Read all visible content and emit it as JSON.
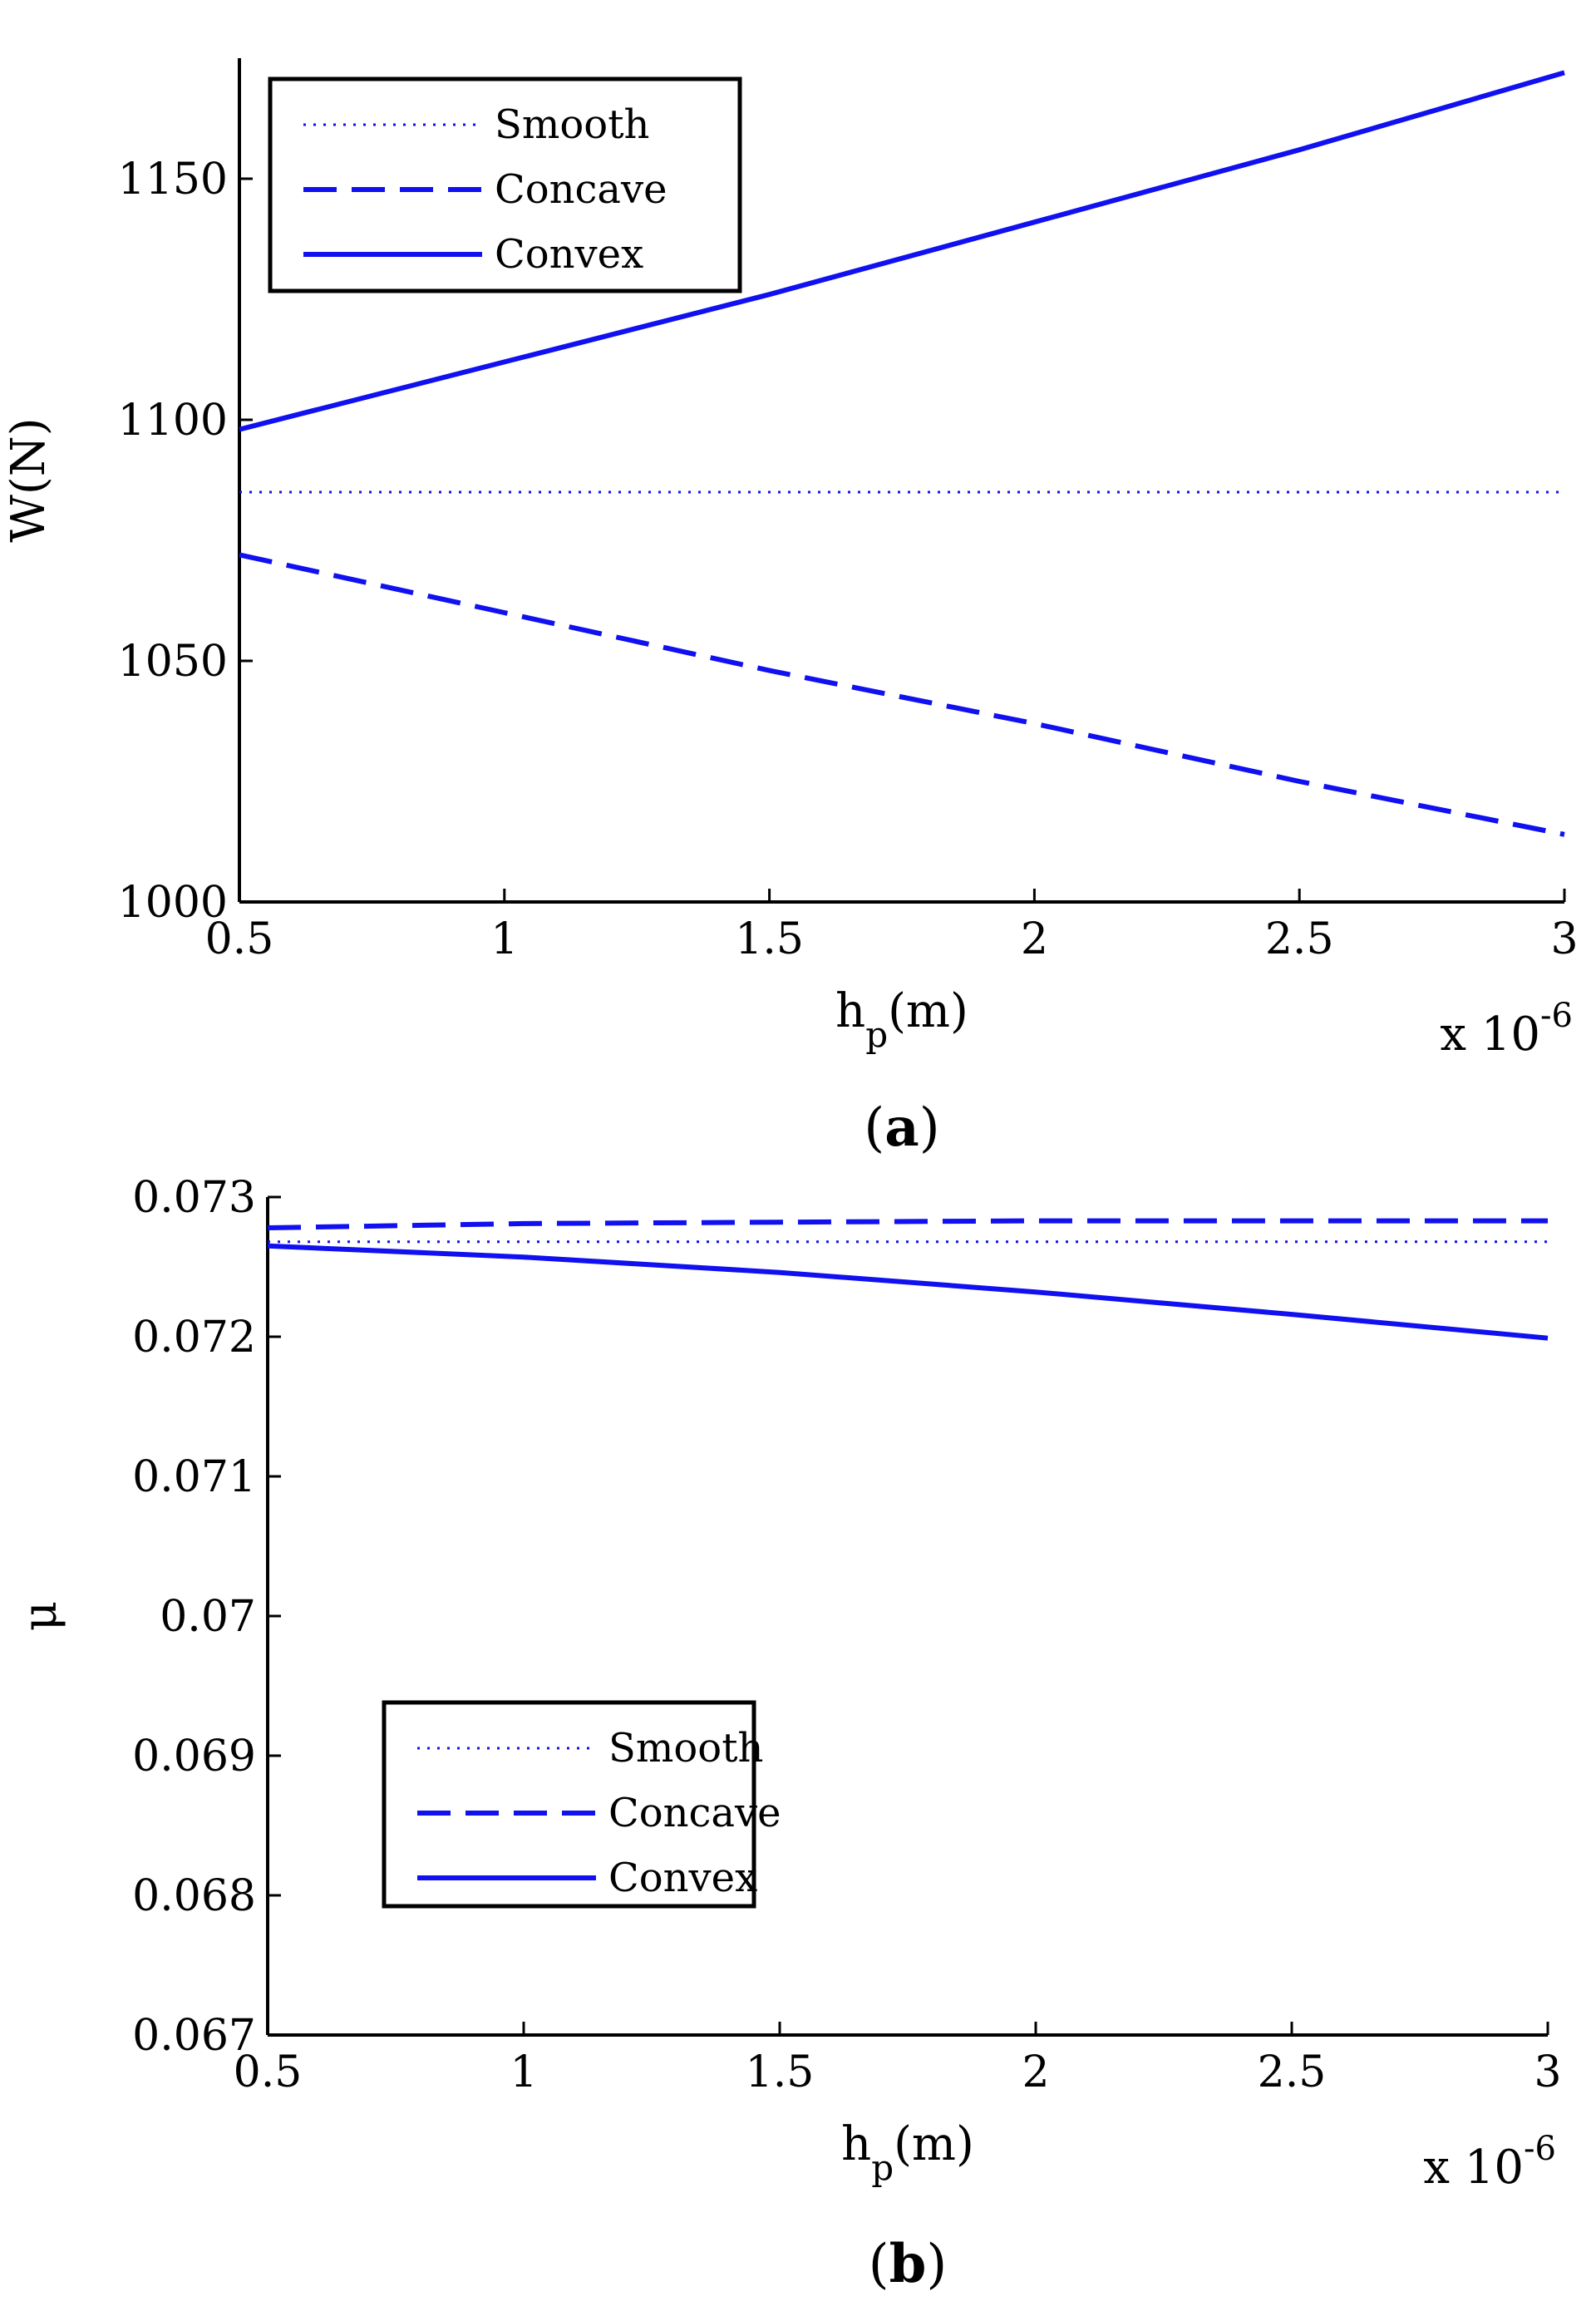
{
  "chart_data": [
    {
      "type": "line",
      "panel_label": "a",
      "xlabel": "h",
      "xlabel_sub": "p",
      "xlabel_unit": "(m)",
      "ylabel": "W(N)",
      "x_multiplier_text": "x 10",
      "x_multiplier_exp": "-6",
      "xlim": [
        0.5,
        3
      ],
      "ylim": [
        1000,
        1175
      ],
      "xticks": [
        0.5,
        1,
        1.5,
        2,
        2.5,
        3
      ],
      "xtick_labels": [
        "0.5",
        "1",
        "1.5",
        "2",
        "2.5",
        "3"
      ],
      "yticks": [
        1000,
        1050,
        1100,
        1150
      ],
      "ytick_labels": [
        "1000",
        "1050",
        "1100",
        "1150"
      ],
      "grid": false,
      "legend_position": "top-left",
      "color": "#1010f0",
      "series": [
        {
          "name": "Smooth",
          "style": "dotted",
          "x": [
            0.5,
            1,
            1.5,
            2,
            2.5,
            3
          ],
          "y": [
            1085,
            1085,
            1085,
            1085,
            1085,
            1085
          ]
        },
        {
          "name": "Concave",
          "style": "dashed",
          "x": [
            0.5,
            1,
            1.5,
            2,
            2.5,
            3
          ],
          "y": [
            1072,
            1060,
            1048,
            1037,
            1025,
            1014
          ]
        },
        {
          "name": "Convex",
          "style": "solid",
          "x": [
            0.5,
            1,
            1.5,
            2,
            2.5,
            3
          ],
          "y": [
            1098,
            1112,
            1126,
            1141,
            1156,
            1172
          ]
        }
      ]
    },
    {
      "type": "line",
      "panel_label": "b",
      "xlabel": "h",
      "xlabel_sub": "p",
      "xlabel_unit": "(m)",
      "ylabel": "μ",
      "x_multiplier_text": "x 10",
      "x_multiplier_exp": "-6",
      "xlim": [
        0.5,
        3
      ],
      "ylim": [
        0.067,
        0.073
      ],
      "xticks": [
        0.5,
        1,
        1.5,
        2,
        2.5,
        3
      ],
      "xtick_labels": [
        "0.5",
        "1",
        "1.5",
        "2",
        "2.5",
        "3"
      ],
      "yticks": [
        0.067,
        0.068,
        0.069,
        0.07,
        0.071,
        0.072,
        0.073
      ],
      "ytick_labels": [
        "0.067",
        "0.068",
        "0.069",
        "0.07",
        "0.071",
        "0.072",
        "0.073"
      ],
      "grid": false,
      "legend_position": "bottom-left",
      "color": "#1010f0",
      "series": [
        {
          "name": "Smooth",
          "style": "dotted",
          "x": [
            0.5,
            1,
            1.5,
            2,
            2.5,
            3
          ],
          "y": [
            0.07268,
            0.07268,
            0.07268,
            0.07268,
            0.07268,
            0.07268
          ]
        },
        {
          "name": "Concave",
          "style": "dashed",
          "x": [
            0.5,
            1,
            1.5,
            2,
            2.5,
            3
          ],
          "y": [
            0.07278,
            0.07281,
            0.07282,
            0.07283,
            0.07283,
            0.07283
          ]
        },
        {
          "name": "Convex",
          "style": "solid",
          "x": [
            0.5,
            1,
            1.5,
            2,
            2.5,
            3
          ],
          "y": [
            0.07265,
            0.07257,
            0.07246,
            0.07232,
            0.07216,
            0.07199
          ]
        }
      ]
    }
  ]
}
